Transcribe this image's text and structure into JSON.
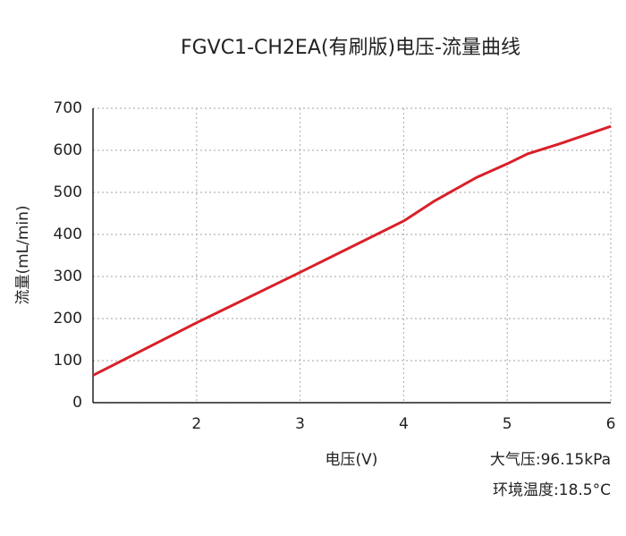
{
  "chart_data": {
    "type": "line",
    "title": "FGVC1-CH2EA(有刷版)电压-流量曲线",
    "x_label": "电压(V)",
    "y_label": "流量(mL/min)",
    "annotations": [
      "大气压:96.15kPa",
      "环境温度:18.5°C"
    ],
    "x": [
      1,
      2,
      3,
      4,
      4.3,
      4.7,
      5,
      5.2,
      5.5,
      6
    ],
    "series": [
      {
        "name": "流量",
        "color": "#d9202a",
        "values": [
          65,
          190,
          310,
          432,
          480,
          535,
          568,
          592,
          615,
          657
        ]
      }
    ],
    "xlim": [
      1,
      6
    ],
    "xticks": [
      2,
      3,
      4,
      5,
      6
    ],
    "ylim": [
      0,
      700
    ],
    "yticks": [
      0,
      100,
      200,
      300,
      400,
      500,
      600,
      700
    ],
    "grid": true
  }
}
